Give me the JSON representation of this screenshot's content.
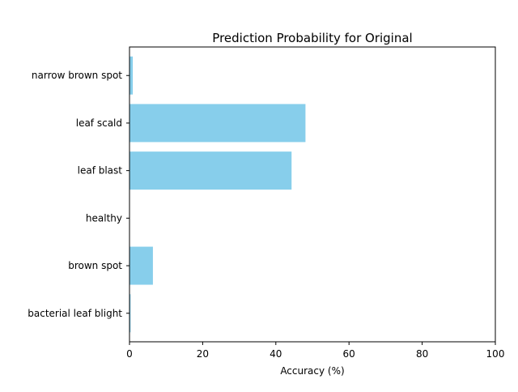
{
  "chart_data": {
    "type": "bar",
    "orientation": "horizontal",
    "title": "Prediction Probability for Original",
    "xlabel": "Accuracy (%)",
    "ylabel": "",
    "categories": [
      "bacterial leaf blight",
      "brown spot",
      "healthy",
      "leaf blast",
      "leaf scald",
      "narrow brown spot"
    ],
    "values": [
      0.3,
      6.4,
      0.0,
      44.3,
      48.1,
      0.9
    ],
    "xlim": [
      0,
      100
    ],
    "xticks": [
      0,
      20,
      40,
      60,
      80,
      100
    ],
    "grid": false,
    "legend": "none",
    "bar_color": "#87ceeb",
    "axis_color": "#000000"
  }
}
